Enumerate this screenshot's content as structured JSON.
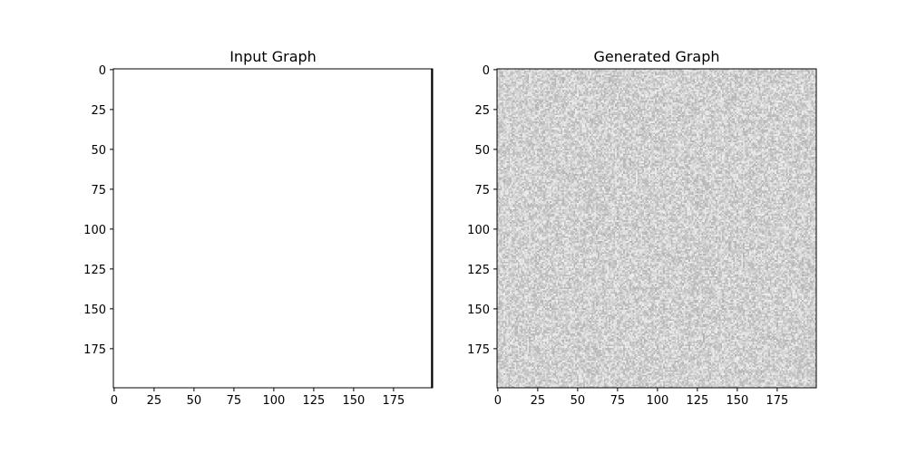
{
  "chart_data": [
    {
      "type": "heatmap",
      "title": "Input Graph",
      "rows": 200,
      "cols": 200,
      "xlim": [
        0,
        199
      ],
      "ylim": [
        199,
        0
      ],
      "xticks": [
        0,
        25,
        50,
        75,
        100,
        125,
        150,
        175
      ],
      "yticks": [
        0,
        25,
        50,
        75,
        100,
        125,
        150,
        175
      ],
      "fill": "uniform white (all cells ≈ 1.0)",
      "colormap": "gray",
      "edge_column_dark": true
    },
    {
      "type": "heatmap",
      "title": "Generated Graph",
      "rows": 200,
      "cols": 200,
      "xlim": [
        0,
        199
      ],
      "ylim": [
        199,
        0
      ],
      "xticks": [
        0,
        25,
        50,
        75,
        100,
        125,
        150,
        175
      ],
      "yticks": [
        0,
        25,
        50,
        75,
        100,
        125,
        150,
        175
      ],
      "fill": "random noise, mean ≈ 0.82, range ≈ 0.70–0.95",
      "colormap": "gray",
      "noise_mean": 0.82,
      "noise_spread": 0.12
    }
  ]
}
